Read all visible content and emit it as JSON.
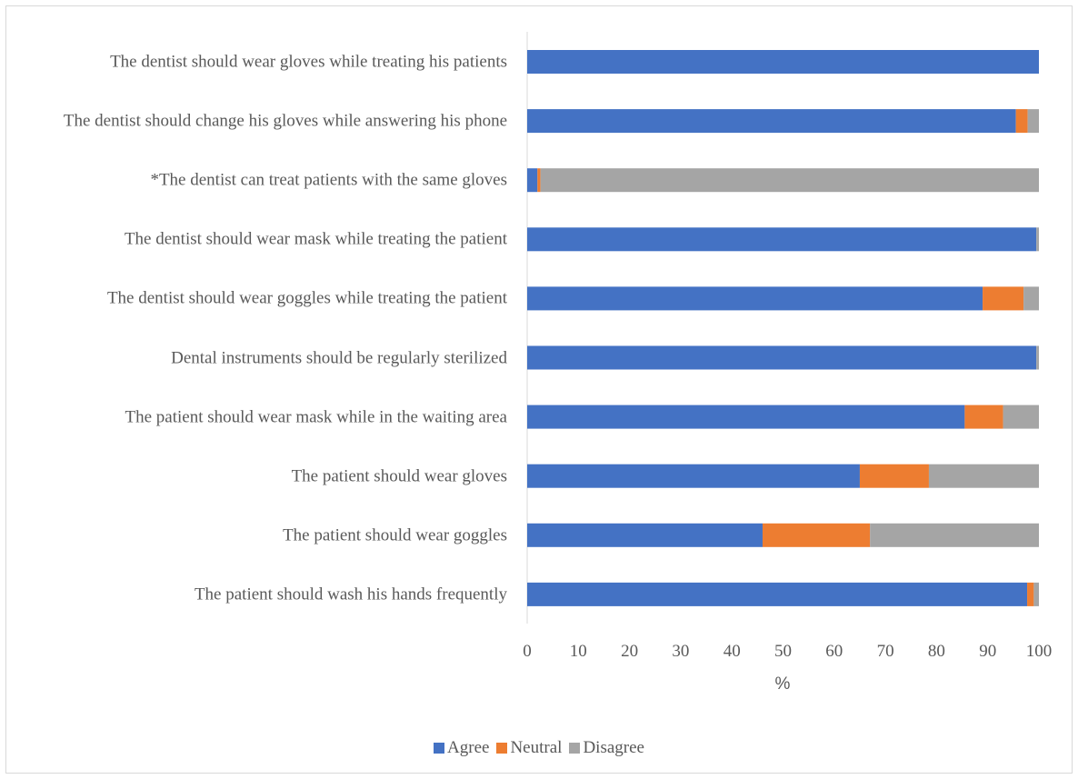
{
  "chart_data": {
    "type": "bar",
    "orientation": "horizontal",
    "stacked": true,
    "categories": [
      "The dentist should wear gloves while treating his patients",
      "The dentist should change his gloves while answering his phone",
      "*The dentist can treat patients with the same gloves",
      "The dentist should wear mask while treating the patient",
      "The dentist should wear goggles while treating the patient",
      "Dental instruments should be regularly sterilized",
      "The patient should wear mask while in the waiting area",
      "The patient should wear gloves",
      "The patient should wear goggles",
      "The patient should wash his hands frequently"
    ],
    "series": [
      {
        "name": "Agree",
        "color": "#4472c4",
        "values": [
          100,
          95.5,
          2,
          99.5,
          89,
          99.5,
          85.5,
          65,
          46,
          97.7
        ]
      },
      {
        "name": "Neutral",
        "color": "#ed7d31",
        "values": [
          0,
          2.3,
          0.6,
          0,
          8,
          0,
          7.5,
          13.5,
          21,
          1.3
        ]
      },
      {
        "name": "Disagree",
        "color": "#a5a5a5",
        "values": [
          0,
          2.2,
          97.4,
          0.5,
          3,
          0.5,
          7,
          21.5,
          33,
          1
        ]
      }
    ],
    "xlabel": "%",
    "xlim": [
      0,
      100
    ],
    "xticks": [
      0,
      10,
      20,
      30,
      40,
      50,
      60,
      70,
      80,
      90,
      100
    ],
    "grid": false,
    "legend_position": "bottom"
  }
}
